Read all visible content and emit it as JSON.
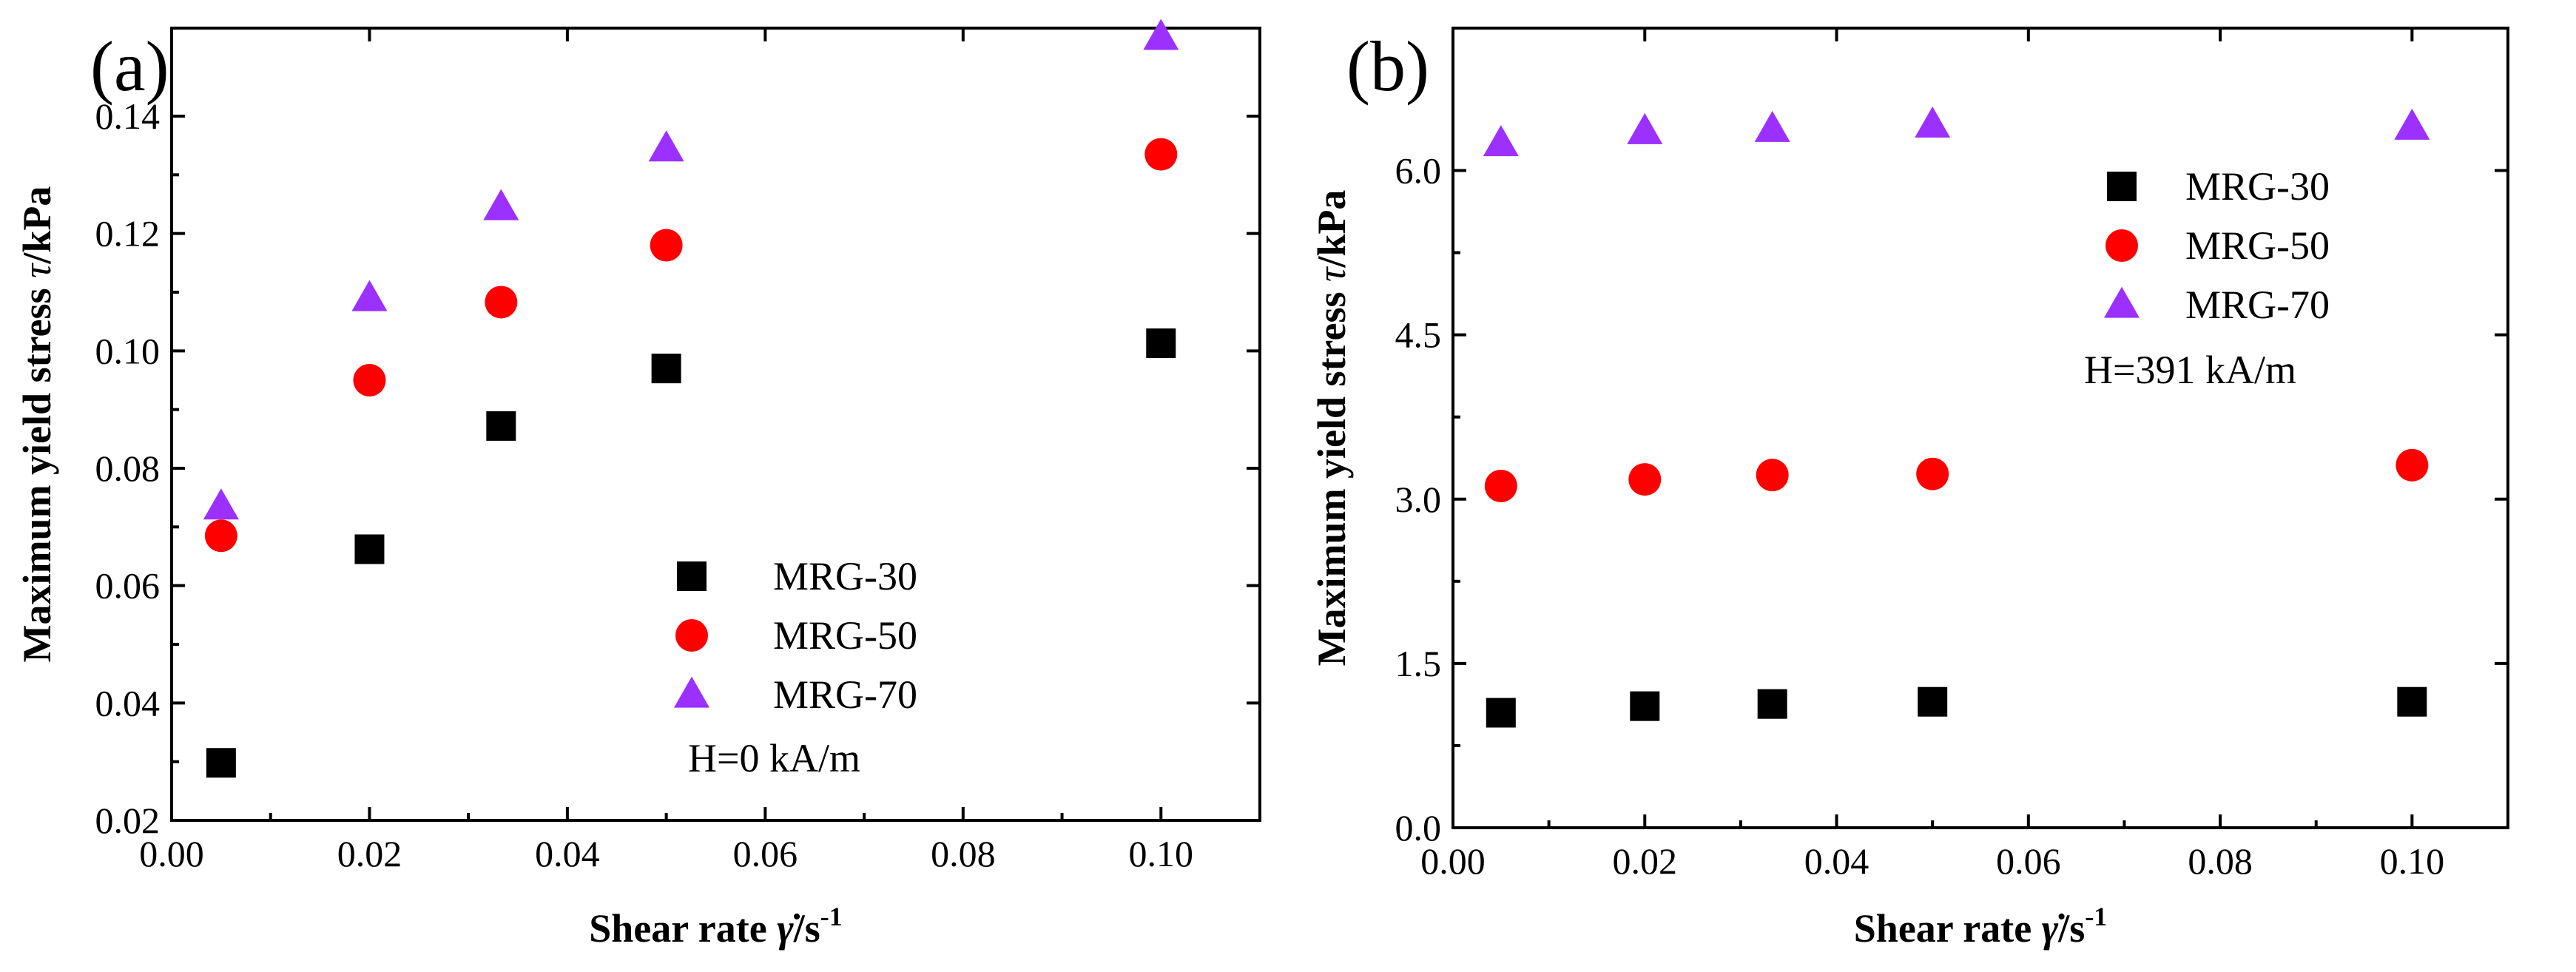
{
  "chart_data": [
    {
      "type": "scatter",
      "panel_label": "(a)",
      "annotation": "H=0 kA/m",
      "xlabel_prefix": "Shear rate ",
      "xlabel_symbol": "γ̇",
      "xlabel_unit": "/s",
      "xlabel_exp": "-1",
      "ylabel_prefix": "Maximum yield stress ",
      "ylabel_symbol": "τ",
      "ylabel_unit": "/kPa",
      "xlim": [
        0.0,
        0.11
      ],
      "ylim": [
        0.02,
        0.155
      ],
      "xticks": [
        0.0,
        0.02,
        0.04,
        0.06,
        0.08,
        0.1
      ],
      "xtick_labels": [
        "0.00",
        "0.02",
        "0.04",
        "0.06",
        "0.08",
        "0.10"
      ],
      "yticks": [
        0.02,
        0.04,
        0.06,
        0.08,
        0.1,
        0.12,
        0.14
      ],
      "ytick_labels": [
        "0.02",
        "0.04",
        "0.06",
        "0.08",
        "0.10",
        "0.12",
        "0.14"
      ],
      "legend_position": "bottom-center",
      "series": [
        {
          "name": "MRG-30",
          "marker": "square",
          "color": "#000000",
          "x": [
            0.005,
            0.02,
            0.0333,
            0.05,
            0.1
          ],
          "y": [
            0.0298,
            0.0662,
            0.0872,
            0.097,
            0.1013
          ]
        },
        {
          "name": "MRG-50",
          "marker": "circle",
          "color": "#ff0000",
          "x": [
            0.005,
            0.02,
            0.0333,
            0.05,
            0.1
          ],
          "y": [
            0.0685,
            0.095,
            0.1083,
            0.118,
            0.1335
          ]
        },
        {
          "name": "MRG-70",
          "marker": "triangle",
          "color": "#9b30ff",
          "x": [
            0.005,
            0.02,
            0.0333,
            0.05,
            0.1
          ],
          "y": [
            0.0735,
            0.109,
            0.1245,
            0.1345,
            0.1535
          ]
        }
      ]
    },
    {
      "type": "scatter",
      "panel_label": "(b)",
      "annotation": "H=391 kA/m",
      "xlabel_prefix": "Shear rate ",
      "xlabel_symbol": "γ̇",
      "xlabel_unit": "/s",
      "xlabel_exp": "-1",
      "ylabel_prefix": "Maximum yield stress ",
      "ylabel_symbol": "τ",
      "ylabel_unit": "/kPa",
      "xlim": [
        0.0,
        0.11
      ],
      "ylim": [
        0.0,
        7.3
      ],
      "xticks": [
        0.0,
        0.02,
        0.04,
        0.06,
        0.08,
        0.1
      ],
      "xtick_labels": [
        "0.00",
        "0.02",
        "0.04",
        "0.06",
        "0.08",
        "0.10"
      ],
      "yticks": [
        0.0,
        1.5,
        3.0,
        4.5,
        6.0
      ],
      "ytick_labels": [
        "0.0",
        "1.5",
        "3.0",
        "4.5",
        "6.0"
      ],
      "legend_position": "top-right",
      "series": [
        {
          "name": "MRG-30",
          "marker": "square",
          "color": "#000000",
          "x": [
            0.005,
            0.02,
            0.0333,
            0.05,
            0.1
          ],
          "y": [
            1.05,
            1.11,
            1.13,
            1.15,
            1.15
          ]
        },
        {
          "name": "MRG-50",
          "marker": "circle",
          "color": "#ff0000",
          "x": [
            0.005,
            0.02,
            0.0333,
            0.05,
            0.1
          ],
          "y": [
            3.12,
            3.18,
            3.22,
            3.23,
            3.31
          ]
        },
        {
          "name": "MRG-70",
          "marker": "triangle",
          "color": "#9b30ff",
          "x": [
            0.005,
            0.02,
            0.0333,
            0.05,
            0.1
          ],
          "y": [
            6.25,
            6.36,
            6.38,
            6.42,
            6.4
          ]
        }
      ]
    }
  ]
}
